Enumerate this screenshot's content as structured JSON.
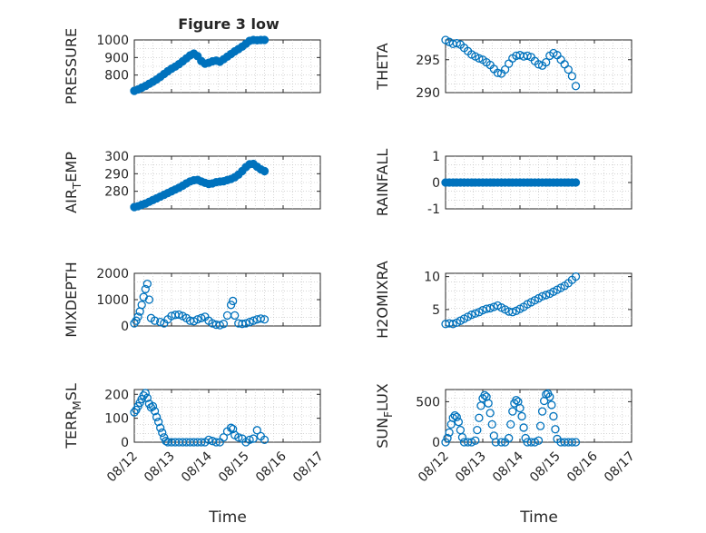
{
  "figure": {
    "title": "Figure 3 low",
    "xlabel_left": "Time",
    "xlabel_right": "Time",
    "marker_color": "#0072BD"
  },
  "chart_data": [
    {
      "type": "scatter",
      "ylabel": "PRESSURE",
      "xlabel": "",
      "xlim": [
        0,
        5
      ],
      "ylim": [
        700,
        1000
      ],
      "yticks": [
        800,
        900,
        1000
      ],
      "xticks": [
        "08/12",
        "08/13",
        "08/14",
        "08/15",
        "08/16",
        "08/17"
      ],
      "show_x_ticklabels": false,
      "filled": true,
      "points": [
        [
          0,
          710
        ],
        [
          0.1,
          718
        ],
        [
          0.2,
          728
        ],
        [
          0.3,
          738
        ],
        [
          0.4,
          750
        ],
        [
          0.5,
          762
        ],
        [
          0.6,
          775
        ],
        [
          0.7,
          790
        ],
        [
          0.8,
          806
        ],
        [
          0.9,
          822
        ],
        [
          1.0,
          836
        ],
        [
          1.1,
          848
        ],
        [
          1.2,
          862
        ],
        [
          1.3,
          878
        ],
        [
          1.4,
          895
        ],
        [
          1.5,
          912
        ],
        [
          1.6,
          922
        ],
        [
          1.7,
          908
        ],
        [
          1.8,
          880
        ],
        [
          1.9,
          865
        ],
        [
          2.0,
          870
        ],
        [
          2.1,
          878
        ],
        [
          2.2,
          882
        ],
        [
          2.3,
          876
        ],
        [
          2.4,
          890
        ],
        [
          2.5,
          905
        ],
        [
          2.6,
          920
        ],
        [
          2.7,
          935
        ],
        [
          2.8,
          948
        ],
        [
          2.9,
          962
        ],
        [
          3.0,
          978
        ],
        [
          3.1,
          995
        ],
        [
          3.2,
          1000
        ],
        [
          3.3,
          998
        ],
        [
          3.4,
          1000
        ],
        [
          3.5,
          1000
        ]
      ]
    },
    {
      "type": "scatter",
      "ylabel": "THETA",
      "xlabel": "",
      "xlim": [
        0,
        5
      ],
      "ylim": [
        290,
        298
      ],
      "yticks": [
        290,
        295
      ],
      "xticks": [
        "08/12",
        "08/13",
        "08/14",
        "08/15",
        "08/16",
        "08/17"
      ],
      "show_x_ticklabels": false,
      "filled": false,
      "points": [
        [
          0,
          298
        ],
        [
          0.1,
          297.7
        ],
        [
          0.2,
          297.4
        ],
        [
          0.3,
          297.5
        ],
        [
          0.4,
          297.3
        ],
        [
          0.5,
          296.8
        ],
        [
          0.6,
          296.3
        ],
        [
          0.7,
          295.8
        ],
        [
          0.8,
          295.5
        ],
        [
          0.9,
          295.2
        ],
        [
          1.0,
          295.0
        ],
        [
          1.1,
          294.6
        ],
        [
          1.2,
          294.2
        ],
        [
          1.3,
          293.6
        ],
        [
          1.4,
          293.0
        ],
        [
          1.5,
          292.9
        ],
        [
          1.6,
          293.5
        ],
        [
          1.7,
          294.4
        ],
        [
          1.8,
          295.2
        ],
        [
          1.9,
          295.6
        ],
        [
          2.0,
          295.7
        ],
        [
          2.1,
          295.5
        ],
        [
          2.2,
          295.6
        ],
        [
          2.3,
          295.4
        ],
        [
          2.4,
          294.8
        ],
        [
          2.5,
          294.3
        ],
        [
          2.6,
          294.1
        ],
        [
          2.7,
          294.6
        ],
        [
          2.8,
          295.6
        ],
        [
          2.9,
          296.0
        ],
        [
          3.0,
          295.7
        ],
        [
          3.1,
          295.0
        ],
        [
          3.2,
          294.3
        ],
        [
          3.3,
          293.5
        ],
        [
          3.4,
          292.5
        ],
        [
          3.5,
          291.0
        ]
      ]
    },
    {
      "type": "scatter",
      "ylabel": "AIR_TEMP",
      "xlabel": "",
      "xlim": [
        0,
        5
      ],
      "ylim": [
        270,
        300
      ],
      "yticks": [
        280,
        290,
        300
      ],
      "xticks": [
        "08/12",
        "08/13",
        "08/14",
        "08/15",
        "08/16",
        "08/17"
      ],
      "show_x_ticklabels": false,
      "filled": true,
      "points": [
        [
          0,
          271
        ],
        [
          0.1,
          271.5
        ],
        [
          0.2,
          272.3
        ],
        [
          0.3,
          273
        ],
        [
          0.4,
          274
        ],
        [
          0.5,
          275
        ],
        [
          0.6,
          276
        ],
        [
          0.7,
          277
        ],
        [
          0.8,
          278
        ],
        [
          0.9,
          279
        ],
        [
          1.0,
          280
        ],
        [
          1.1,
          281
        ],
        [
          1.2,
          282
        ],
        [
          1.3,
          283.2
        ],
        [
          1.4,
          284.5
        ],
        [
          1.5,
          285.6
        ],
        [
          1.6,
          286.3
        ],
        [
          1.7,
          286.5
        ],
        [
          1.8,
          285.6
        ],
        [
          1.9,
          284.8
        ],
        [
          2.0,
          284.2
        ],
        [
          2.1,
          284.5
        ],
        [
          2.2,
          285.2
        ],
        [
          2.3,
          285.5
        ],
        [
          2.4,
          285.7
        ],
        [
          2.5,
          286.4
        ],
        [
          2.6,
          287
        ],
        [
          2.7,
          288
        ],
        [
          2.8,
          289.5
        ],
        [
          2.9,
          291.5
        ],
        [
          3.0,
          293.8
        ],
        [
          3.1,
          295.4
        ],
        [
          3.2,
          295.6
        ],
        [
          3.3,
          294
        ],
        [
          3.4,
          292.5
        ],
        [
          3.5,
          291.5
        ]
      ]
    },
    {
      "type": "scatter",
      "ylabel": "RAINFALL",
      "xlabel": "",
      "xlim": [
        0,
        5
      ],
      "ylim": [
        -1,
        1
      ],
      "yticks": [
        -1,
        0,
        1
      ],
      "xticks": [
        "08/12",
        "08/13",
        "08/14",
        "08/15",
        "08/16",
        "08/17"
      ],
      "show_x_ticklabels": false,
      "filled": true,
      "points": [
        [
          0,
          0
        ],
        [
          0.1,
          0
        ],
        [
          0.2,
          0
        ],
        [
          0.3,
          0
        ],
        [
          0.4,
          0
        ],
        [
          0.5,
          0
        ],
        [
          0.6,
          0
        ],
        [
          0.7,
          0
        ],
        [
          0.8,
          0
        ],
        [
          0.9,
          0
        ],
        [
          1.0,
          0
        ],
        [
          1.1,
          0
        ],
        [
          1.2,
          0
        ],
        [
          1.3,
          0
        ],
        [
          1.4,
          0
        ],
        [
          1.5,
          0
        ],
        [
          1.6,
          0
        ],
        [
          1.7,
          0
        ],
        [
          1.8,
          0
        ],
        [
          1.9,
          0
        ],
        [
          2.0,
          0
        ],
        [
          2.1,
          0
        ],
        [
          2.2,
          0
        ],
        [
          2.3,
          0
        ],
        [
          2.4,
          0
        ],
        [
          2.5,
          0
        ],
        [
          2.6,
          0
        ],
        [
          2.7,
          0
        ],
        [
          2.8,
          0
        ],
        [
          2.9,
          0
        ],
        [
          3.0,
          0
        ],
        [
          3.1,
          0
        ],
        [
          3.2,
          0
        ],
        [
          3.3,
          0
        ],
        [
          3.4,
          0
        ],
        [
          3.5,
          0
        ]
      ]
    },
    {
      "type": "scatter",
      "ylabel": "MIXDEPTH",
      "xlabel": "",
      "xlim": [
        0,
        5
      ],
      "ylim": [
        0,
        2000
      ],
      "yticks": [
        0,
        1000,
        2000
      ],
      "xticks": [
        "08/12",
        "08/13",
        "08/14",
        "08/15",
        "08/16",
        "08/17"
      ],
      "show_x_ticklabels": false,
      "filled": false,
      "points": [
        [
          0,
          100
        ],
        [
          0.05,
          200
        ],
        [
          0.1,
          350
        ],
        [
          0.15,
          550
        ],
        [
          0.2,
          800
        ],
        [
          0.25,
          1100
        ],
        [
          0.3,
          1400
        ],
        [
          0.35,
          1600
        ],
        [
          0.4,
          1000
        ],
        [
          0.45,
          300
        ],
        [
          0.55,
          200
        ],
        [
          0.7,
          150
        ],
        [
          0.8,
          100
        ],
        [
          0.9,
          250
        ],
        [
          1.0,
          380
        ],
        [
          1.1,
          420
        ],
        [
          1.2,
          430
        ],
        [
          1.3,
          380
        ],
        [
          1.4,
          300
        ],
        [
          1.5,
          200
        ],
        [
          1.6,
          180
        ],
        [
          1.7,
          250
        ],
        [
          1.8,
          300
        ],
        [
          1.9,
          350
        ],
        [
          2.0,
          200
        ],
        [
          2.1,
          100
        ],
        [
          2.2,
          50
        ],
        [
          2.3,
          30
        ],
        [
          2.4,
          80
        ],
        [
          2.5,
          400
        ],
        [
          2.6,
          800
        ],
        [
          2.65,
          950
        ],
        [
          2.7,
          400
        ],
        [
          2.8,
          100
        ],
        [
          2.9,
          80
        ],
        [
          3.0,
          100
        ],
        [
          3.1,
          150
        ],
        [
          3.2,
          200
        ],
        [
          3.3,
          250
        ],
        [
          3.4,
          280
        ],
        [
          3.5,
          250
        ]
      ]
    },
    {
      "type": "scatter",
      "ylabel": "H2OMIXRA",
      "xlabel": "",
      "xlim": [
        0,
        5
      ],
      "ylim": [
        2.5,
        10.5
      ],
      "yticks": [
        5,
        10
      ],
      "xticks": [
        "08/12",
        "08/13",
        "08/14",
        "08/15",
        "08/16",
        "08/17"
      ],
      "show_x_ticklabels": false,
      "filled": false,
      "points": [
        [
          0,
          2.8
        ],
        [
          0.1,
          2.9
        ],
        [
          0.2,
          2.8
        ],
        [
          0.3,
          3.0
        ],
        [
          0.4,
          3.3
        ],
        [
          0.5,
          3.6
        ],
        [
          0.6,
          3.9
        ],
        [
          0.7,
          4.2
        ],
        [
          0.8,
          4.4
        ],
        [
          0.9,
          4.6
        ],
        [
          1.0,
          4.9
        ],
        [
          1.1,
          5.1
        ],
        [
          1.2,
          5.2
        ],
        [
          1.3,
          5.4
        ],
        [
          1.4,
          5.6
        ],
        [
          1.5,
          5.3
        ],
        [
          1.6,
          5.0
        ],
        [
          1.7,
          4.7
        ],
        [
          1.8,
          4.6
        ],
        [
          1.9,
          4.8
        ],
        [
          2.0,
          5.1
        ],
        [
          2.1,
          5.4
        ],
        [
          2.2,
          5.8
        ],
        [
          2.3,
          6.1
        ],
        [
          2.4,
          6.4
        ],
        [
          2.5,
          6.7
        ],
        [
          2.6,
          7.0
        ],
        [
          2.7,
          7.2
        ],
        [
          2.8,
          7.4
        ],
        [
          2.9,
          7.7
        ],
        [
          3.0,
          8.0
        ],
        [
          3.1,
          8.3
        ],
        [
          3.2,
          8.6
        ],
        [
          3.3,
          9.0
        ],
        [
          3.4,
          9.5
        ],
        [
          3.5,
          10.0
        ]
      ]
    },
    {
      "type": "scatter",
      "ylabel": "TERR_MSL",
      "xlabel": "",
      "xlim": [
        0,
        5
      ],
      "ylim": [
        0,
        220
      ],
      "yticks": [
        0,
        100,
        200
      ],
      "xticks": [
        "08/12",
        "08/13",
        "08/14",
        "08/15",
        "08/16",
        "08/17"
      ],
      "show_x_ticklabels": true,
      "filled": false,
      "points": [
        [
          0,
          125
        ],
        [
          0.05,
          135
        ],
        [
          0.1,
          150
        ],
        [
          0.15,
          165
        ],
        [
          0.2,
          180
        ],
        [
          0.25,
          195
        ],
        [
          0.3,
          205
        ],
        [
          0.35,
          185
        ],
        [
          0.4,
          160
        ],
        [
          0.45,
          145
        ],
        [
          0.5,
          150
        ],
        [
          0.55,
          130
        ],
        [
          0.6,
          105
        ],
        [
          0.65,
          85
        ],
        [
          0.7,
          60
        ],
        [
          0.75,
          40
        ],
        [
          0.8,
          20
        ],
        [
          0.85,
          5
        ],
        [
          0.9,
          0
        ],
        [
          1.0,
          0
        ],
        [
          1.1,
          0
        ],
        [
          1.2,
          0
        ],
        [
          1.3,
          0
        ],
        [
          1.4,
          0
        ],
        [
          1.5,
          0
        ],
        [
          1.6,
          0
        ],
        [
          1.7,
          0
        ],
        [
          1.8,
          0
        ],
        [
          1.9,
          0
        ],
        [
          2.0,
          10
        ],
        [
          2.1,
          5
        ],
        [
          2.2,
          0
        ],
        [
          2.3,
          0
        ],
        [
          2.4,
          20
        ],
        [
          2.5,
          45
        ],
        [
          2.6,
          60
        ],
        [
          2.65,
          55
        ],
        [
          2.7,
          30
        ],
        [
          2.8,
          20
        ],
        [
          2.9,
          15
        ],
        [
          3.0,
          0
        ],
        [
          3.1,
          10
        ],
        [
          3.2,
          15
        ],
        [
          3.3,
          50
        ],
        [
          3.4,
          25
        ],
        [
          3.5,
          10
        ]
      ]
    },
    {
      "type": "scatter",
      "ylabel": "SUN_FLUX",
      "xlabel": "",
      "xlim": [
        0,
        5
      ],
      "ylim": [
        0,
        650
      ],
      "yticks": [
        0,
        500
      ],
      "xticks": [
        "08/12",
        "08/13",
        "08/14",
        "08/15",
        "08/16",
        "08/17"
      ],
      "show_x_ticklabels": true,
      "filled": false,
      "points": [
        [
          0,
          0
        ],
        [
          0.05,
          50
        ],
        [
          0.1,
          120
        ],
        [
          0.15,
          220
        ],
        [
          0.2,
          300
        ],
        [
          0.25,
          330
        ],
        [
          0.3,
          310
        ],
        [
          0.35,
          250
        ],
        [
          0.4,
          150
        ],
        [
          0.45,
          60
        ],
        [
          0.5,
          0
        ],
        [
          0.6,
          0
        ],
        [
          0.7,
          0
        ],
        [
          0.8,
          20
        ],
        [
          0.85,
          150
        ],
        [
          0.9,
          300
        ],
        [
          0.95,
          450
        ],
        [
          1.0,
          540
        ],
        [
          1.05,
          580
        ],
        [
          1.1,
          560
        ],
        [
          1.15,
          480
        ],
        [
          1.2,
          360
        ],
        [
          1.25,
          220
        ],
        [
          1.3,
          80
        ],
        [
          1.35,
          0
        ],
        [
          1.5,
          0
        ],
        [
          1.6,
          0
        ],
        [
          1.7,
          50
        ],
        [
          1.75,
          220
        ],
        [
          1.8,
          380
        ],
        [
          1.85,
          480
        ],
        [
          1.9,
          520
        ],
        [
          1.95,
          500
        ],
        [
          2.0,
          420
        ],
        [
          2.05,
          320
        ],
        [
          2.1,
          180
        ],
        [
          2.15,
          50
        ],
        [
          2.2,
          0
        ],
        [
          2.3,
          0
        ],
        [
          2.4,
          0
        ],
        [
          2.5,
          20
        ],
        [
          2.55,
          200
        ],
        [
          2.6,
          380
        ],
        [
          2.65,
          510
        ],
        [
          2.7,
          590
        ],
        [
          2.75,
          600
        ],
        [
          2.8,
          560
        ],
        [
          2.85,
          460
        ],
        [
          2.9,
          320
        ],
        [
          2.95,
          160
        ],
        [
          3.0,
          40
        ],
        [
          3.1,
          0
        ],
        [
          3.2,
          0
        ],
        [
          3.3,
          0
        ],
        [
          3.4,
          0
        ],
        [
          3.5,
          0
        ]
      ]
    }
  ]
}
